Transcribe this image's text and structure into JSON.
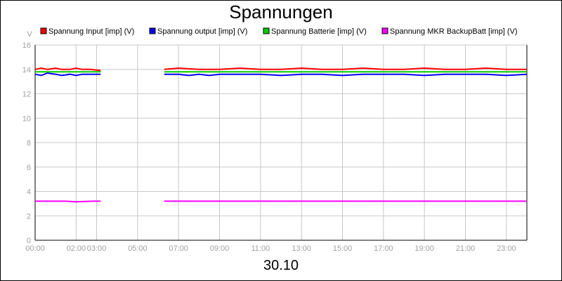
{
  "chart_data": {
    "type": "line",
    "title": "Spannungen",
    "ylabel": "V",
    "xlabel": "30.10",
    "xlim": [
      0,
      24
    ],
    "ylim": [
      0,
      16
    ],
    "yticks": [
      0,
      2,
      4,
      6,
      8,
      10,
      12,
      14,
      16
    ],
    "xticks": [
      {
        "x": 0,
        "label": "00:00"
      },
      {
        "x": 2,
        "label": "02:00"
      },
      {
        "x": 3,
        "label": "03:00"
      },
      {
        "x": 5,
        "label": "05:00"
      },
      {
        "x": 7,
        "label": "07:00"
      },
      {
        "x": 9,
        "label": "09:00"
      },
      {
        "x": 11,
        "label": "11:00"
      },
      {
        "x": 13,
        "label": "13:00"
      },
      {
        "x": 15,
        "label": "15:00"
      },
      {
        "x": 17,
        "label": "17:00"
      },
      {
        "x": 19,
        "label": "19:00"
      },
      {
        "x": 21,
        "label": "21:00"
      },
      {
        "x": 23,
        "label": "23:00"
      }
    ],
    "grid": true,
    "legend_position": "top",
    "series": [
      {
        "name": "Spannung Input [imp] (V)",
        "color": "#ff0000",
        "segments": [
          [
            [
              0,
              14.0
            ],
            [
              0.3,
              14.1
            ],
            [
              0.6,
              14.0
            ],
            [
              1.0,
              14.1
            ],
            [
              1.3,
              14.0
            ],
            [
              1.7,
              14.0
            ],
            [
              2.0,
              14.1
            ],
            [
              2.3,
              14.0
            ],
            [
              2.7,
              14.0
            ],
            [
              3.2,
              13.9
            ]
          ],
          [
            [
              6.3,
              14.0
            ],
            [
              7.0,
              14.1
            ],
            [
              8.0,
              14.0
            ],
            [
              9.0,
              14.0
            ],
            [
              10.0,
              14.1
            ],
            [
              11.0,
              14.0
            ],
            [
              12.0,
              14.0
            ],
            [
              13.0,
              14.1
            ],
            [
              14.0,
              14.0
            ],
            [
              15.0,
              14.0
            ],
            [
              16.0,
              14.1
            ],
            [
              17.0,
              14.0
            ],
            [
              18.0,
              14.0
            ],
            [
              19.0,
              14.1
            ],
            [
              20.0,
              14.0
            ],
            [
              21.0,
              14.0
            ],
            [
              22.0,
              14.1
            ],
            [
              23.0,
              14.0
            ],
            [
              24.0,
              14.0
            ]
          ]
        ]
      },
      {
        "name": "Spannung output [imp] (V)",
        "color": "#0000ff",
        "segments": [
          [
            [
              0,
              13.6
            ],
            [
              0.3,
              13.5
            ],
            [
              0.6,
              13.7
            ],
            [
              1.0,
              13.6
            ],
            [
              1.3,
              13.5
            ],
            [
              1.7,
              13.6
            ],
            [
              2.0,
              13.5
            ],
            [
              2.3,
              13.6
            ],
            [
              2.7,
              13.6
            ],
            [
              3.2,
              13.6
            ]
          ],
          [
            [
              6.3,
              13.6
            ],
            [
              7.0,
              13.6
            ],
            [
              7.5,
              13.5
            ],
            [
              8.0,
              13.6
            ],
            [
              8.5,
              13.5
            ],
            [
              9.0,
              13.6
            ],
            [
              10.0,
              13.6
            ],
            [
              11.0,
              13.6
            ],
            [
              12.0,
              13.5
            ],
            [
              13.0,
              13.6
            ],
            [
              14.0,
              13.6
            ],
            [
              15.0,
              13.5
            ],
            [
              16.0,
              13.6
            ],
            [
              17.0,
              13.6
            ],
            [
              18.0,
              13.6
            ],
            [
              19.0,
              13.5
            ],
            [
              20.0,
              13.6
            ],
            [
              21.0,
              13.6
            ],
            [
              22.0,
              13.6
            ],
            [
              23.0,
              13.5
            ],
            [
              24.0,
              13.6
            ]
          ]
        ]
      },
      {
        "name": "Spannung Batterie [imp] (V)",
        "color": "#00cc00",
        "segments": [
          [
            [
              0,
              13.8
            ],
            [
              1.0,
              13.8
            ],
            [
              2.0,
              13.8
            ],
            [
              3.2,
              13.8
            ]
          ],
          [
            [
              6.3,
              13.8
            ],
            [
              9.0,
              13.8
            ],
            [
              12.0,
              13.8
            ],
            [
              15.0,
              13.8
            ],
            [
              18.0,
              13.8
            ],
            [
              21.0,
              13.8
            ],
            [
              24.0,
              13.8
            ]
          ]
        ]
      },
      {
        "name": "Spannung MKR BackupBatt [imp] (V)",
        "color": "#ff00ff",
        "segments": [
          [
            [
              0,
              3.2
            ],
            [
              1.5,
              3.2
            ],
            [
              2.0,
              3.15
            ],
            [
              2.8,
              3.2
            ],
            [
              3.2,
              3.2
            ]
          ],
          [
            [
              6.3,
              3.2
            ],
            [
              12.0,
              3.2
            ],
            [
              18.0,
              3.2
            ],
            [
              24.0,
              3.2
            ]
          ]
        ]
      }
    ]
  }
}
